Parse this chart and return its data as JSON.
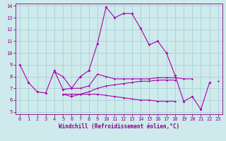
{
  "xlabel": "Windchill (Refroidissement éolien,°C)",
  "bg_color": "#ceeaec",
  "grid_color": "#acd4d8",
  "line_color": "#aa00aa",
  "x_values": [
    0,
    1,
    2,
    3,
    4,
    5,
    6,
    7,
    8,
    9,
    10,
    11,
    12,
    13,
    14,
    15,
    16,
    17,
    18,
    19,
    20,
    21,
    22,
    23
  ],
  "series1": [
    9.0,
    7.5,
    6.7,
    6.6,
    8.5,
    6.9,
    7.0,
    8.0,
    8.5,
    10.8,
    13.9,
    13.0,
    13.35,
    13.35,
    12.1,
    10.7,
    11.0,
    10.0,
    8.1,
    5.9,
    6.3,
    5.2,
    7.5,
    null
  ],
  "series2": [
    null,
    null,
    null,
    null,
    8.4,
    8.0,
    7.0,
    7.0,
    7.2,
    8.2,
    8.0,
    7.8,
    7.8,
    7.8,
    7.8,
    7.8,
    7.9,
    7.9,
    7.9,
    7.8,
    7.8,
    null,
    null,
    7.6
  ],
  "series3": [
    null,
    null,
    null,
    null,
    null,
    6.5,
    6.5,
    6.5,
    6.7,
    7.0,
    7.2,
    7.3,
    7.4,
    7.5,
    7.6,
    7.6,
    7.7,
    7.7,
    7.7,
    null,
    null,
    null,
    null,
    null
  ],
  "series4": [
    null,
    null,
    null,
    null,
    null,
    6.5,
    6.3,
    6.5,
    6.5,
    6.5,
    6.4,
    6.3,
    6.2,
    6.1,
    6.0,
    6.0,
    5.9,
    5.9,
    5.9,
    null,
    null,
    null,
    null,
    null
  ],
  "ylim": [
    5,
    14
  ],
  "xlim": [
    0,
    23
  ],
  "yticks": [
    5,
    6,
    7,
    8,
    9,
    10,
    11,
    12,
    13,
    14
  ],
  "xticks": [
    0,
    1,
    2,
    3,
    4,
    5,
    6,
    7,
    8,
    9,
    10,
    11,
    12,
    13,
    14,
    15,
    16,
    17,
    18,
    19,
    20,
    21,
    22,
    23
  ]
}
